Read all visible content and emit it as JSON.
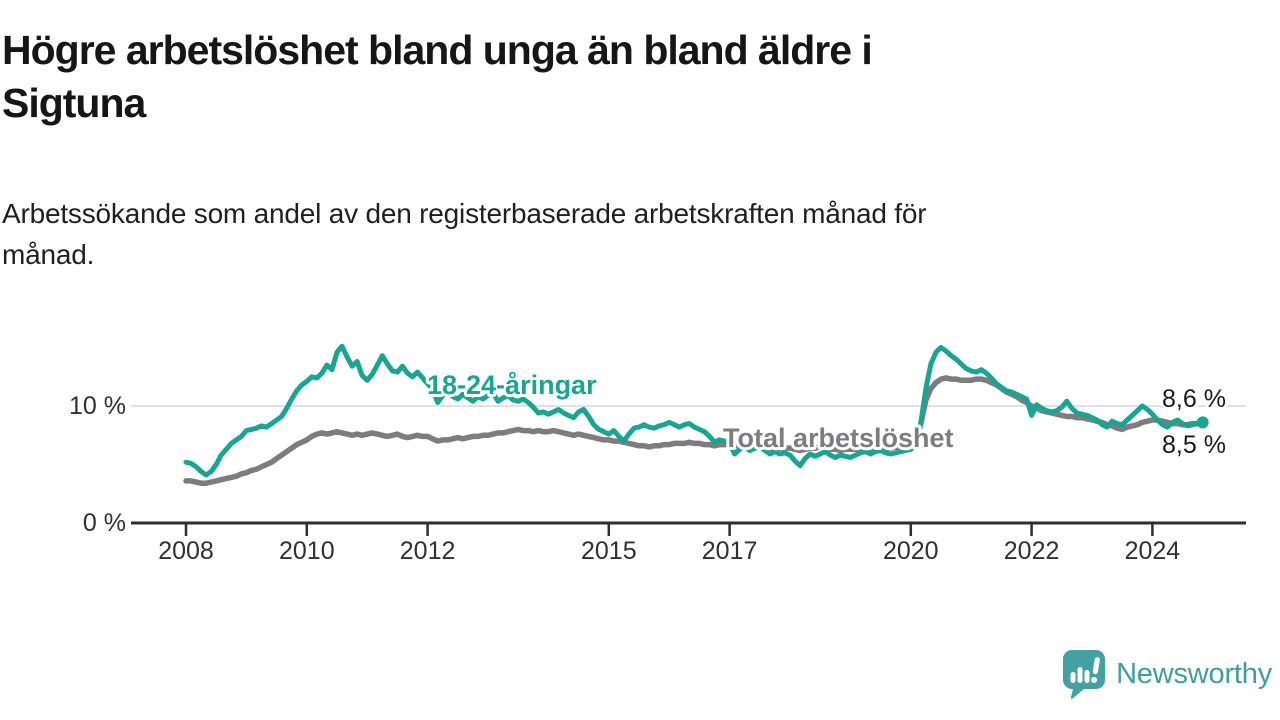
{
  "header": {
    "title_lines": [
      "Högre arbetslöshet bland unga än bland äldre i",
      "Sigtuna"
    ],
    "subtitle_lines": [
      "Arbetssökande som andel av den registerbaserade arbetskraften månad för",
      "månad."
    ]
  },
  "branding": {
    "logo_text": "Newsworthy",
    "logo_icon": "newsworthy-speech-bubble-bar-chart-icon",
    "logo_color": "#3f9da1",
    "logo_icon_color": "#44a0a3"
  },
  "colors": {
    "youth_line": "#1aa493",
    "total_line": "#7d7d81",
    "gridline": "#d9d9d9",
    "axis": "#2e2e2e",
    "axis_text": "#303030",
    "end_label_text": "#1a1a1a"
  },
  "chart_data": {
    "type": "line",
    "title": "Högre arbetslöshet bland unga än bland äldre i Sigtuna",
    "subtitle": "Arbetssökande som andel av den registerbaserade arbetskraften månad för månad.",
    "unit": "%",
    "frequency": "monthly",
    "start": "2008-01",
    "end": "2024-11",
    "grid": "horizontal-10-only",
    "legend_position": "inline-line-labels",
    "ylim": [
      0,
      15.6
    ],
    "y_ticks": [
      {
        "value": 10,
        "label": "10 %",
        "gridline": true
      },
      {
        "value": 0,
        "label": "0 %",
        "gridline": false
      }
    ],
    "x_ticks": [
      {
        "year": 2008,
        "label": "2008"
      },
      {
        "year": 2010,
        "label": "2010"
      },
      {
        "year": 2012,
        "label": "2012"
      },
      {
        "year": 2015,
        "label": "2015"
      },
      {
        "year": 2017,
        "label": "2017"
      },
      {
        "year": 2020,
        "label": "2020"
      },
      {
        "year": 2022,
        "label": "2022"
      },
      {
        "year": 2024,
        "label": "2024"
      }
    ],
    "series": [
      {
        "name": "Total arbetslöshet",
        "color": "#7d7d81",
        "end_label": "8,5 %",
        "values": [
          3.6,
          3.6,
          3.5,
          3.4,
          3.4,
          3.5,
          3.6,
          3.7,
          3.8,
          3.9,
          4.0,
          4.2,
          4.3,
          4.5,
          4.6,
          4.8,
          5.0,
          5.2,
          5.5,
          5.8,
          6.1,
          6.4,
          6.7,
          6.9,
          7.1,
          7.4,
          7.6,
          7.7,
          7.6,
          7.7,
          7.8,
          7.7,
          7.6,
          7.5,
          7.6,
          7.5,
          7.6,
          7.7,
          7.6,
          7.5,
          7.4,
          7.5,
          7.6,
          7.4,
          7.3,
          7.4,
          7.5,
          7.4,
          7.4,
          7.2,
          7.0,
          7.1,
          7.1,
          7.2,
          7.3,
          7.2,
          7.3,
          7.4,
          7.4,
          7.5,
          7.5,
          7.6,
          7.7,
          7.7,
          7.8,
          7.9,
          8.0,
          7.9,
          7.9,
          7.8,
          7.9,
          7.8,
          7.8,
          7.9,
          7.8,
          7.7,
          7.6,
          7.5,
          7.6,
          7.5,
          7.4,
          7.3,
          7.2,
          7.1,
          7.1,
          7.0,
          7.0,
          6.9,
          6.8,
          6.7,
          6.6,
          6.6,
          6.5,
          6.6,
          6.6,
          6.7,
          6.7,
          6.8,
          6.8,
          6.8,
          6.9,
          6.8,
          6.8,
          6.7,
          6.7,
          6.6,
          6.7,
          6.7,
          6.7,
          6.6,
          6.6,
          6.5,
          6.5,
          6.4,
          6.5,
          6.4,
          6.3,
          6.4,
          6.4,
          6.4,
          6.4,
          6.3,
          6.2,
          6.3,
          6.4,
          6.4,
          6.5,
          6.4,
          6.3,
          6.3,
          6.2,
          6.3,
          6.3,
          6.3,
          6.4,
          6.4,
          6.3,
          6.4,
          6.5,
          6.4,
          6.4,
          6.5,
          6.4,
          6.5,
          6.5,
          6.8,
          8.5,
          10.5,
          11.5,
          12.0,
          12.3,
          12.4,
          12.3,
          12.3,
          12.2,
          12.2,
          12.2,
          12.3,
          12.3,
          12.2,
          12.0,
          11.8,
          11.5,
          11.2,
          11.0,
          10.8,
          10.5,
          10.3,
          10.0,
          9.8,
          9.6,
          9.5,
          9.4,
          9.3,
          9.2,
          9.1,
          9.1,
          9.0,
          9.0,
          8.9,
          8.8,
          8.7,
          8.6,
          8.4,
          8.3,
          8.1,
          8.0,
          8.2,
          8.3,
          8.4,
          8.6,
          8.7,
          8.8,
          8.8,
          8.7,
          8.6,
          8.5,
          8.5,
          8.4,
          8.4,
          8.5,
          8.5,
          8.5
        ]
      },
      {
        "name": "18-24-åringar",
        "color": "#1aa493",
        "end_label": "8,6 %",
        "values": [
          5.2,
          5.1,
          4.8,
          4.4,
          4.1,
          4.4,
          5.0,
          5.8,
          6.3,
          6.8,
          7.1,
          7.4,
          7.9,
          8.0,
          8.1,
          8.3,
          8.2,
          8.5,
          8.8,
          9.1,
          9.8,
          10.6,
          11.3,
          11.8,
          12.1,
          12.5,
          12.4,
          12.8,
          13.5,
          13.1,
          14.6,
          15.1,
          14.2,
          13.4,
          13.8,
          12.6,
          12.2,
          12.7,
          13.5,
          14.3,
          13.6,
          13.0,
          12.9,
          13.4,
          12.8,
          12.5,
          12.9,
          12.4,
          11.9,
          11.4,
          10.3,
          10.9,
          11.2,
          10.8,
          10.6,
          11.0,
          10.7,
          10.4,
          10.8,
          10.6,
          10.9,
          11.1,
          10.4,
          10.7,
          10.9,
          10.5,
          10.4,
          10.6,
          10.3,
          9.9,
          9.4,
          9.5,
          9.3,
          9.5,
          9.7,
          9.4,
          9.2,
          9.0,
          9.5,
          9.7,
          9.1,
          8.4,
          8.0,
          7.8,
          7.6,
          7.9,
          7.4,
          7.0,
          7.6,
          8.1,
          8.2,
          8.4,
          8.2,
          8.1,
          8.3,
          8.4,
          8.6,
          8.4,
          8.2,
          8.4,
          8.5,
          8.2,
          8.0,
          7.8,
          7.4,
          6.9,
          7.1,
          7.0,
          6.8,
          5.9,
          6.3,
          6.6,
          6.2,
          6.4,
          6.5,
          6.2,
          5.9,
          6.1,
          5.9,
          6.0,
          5.8,
          5.3,
          4.9,
          5.5,
          5.9,
          5.7,
          5.9,
          6.1,
          5.8,
          5.6,
          5.8,
          5.7,
          5.6,
          5.8,
          6.0,
          6.1,
          5.9,
          6.1,
          6.2,
          6.0,
          5.9,
          6.0,
          6.1,
          6.2,
          6.3,
          6.6,
          8.6,
          11.5,
          13.6,
          14.6,
          15.0,
          14.7,
          14.3,
          14.0,
          13.6,
          13.2,
          13.0,
          12.9,
          13.1,
          12.8,
          12.4,
          11.9,
          11.6,
          11.3,
          11.2,
          11.0,
          10.8,
          10.6,
          9.2,
          10.1,
          9.8,
          9.6,
          9.5,
          9.6,
          9.9,
          10.4,
          9.8,
          9.4,
          9.3,
          9.2,
          9.0,
          8.8,
          8.4,
          8.2,
          8.7,
          8.5,
          8.4,
          8.8,
          9.2,
          9.6,
          10.0,
          9.7,
          9.3,
          8.8,
          8.4,
          8.2,
          8.6,
          8.8,
          8.5,
          8.3,
          8.4,
          8.5,
          8.6
        ]
      }
    ],
    "line_labels": [
      {
        "series": "18-24-åringar",
        "text": "18-24-åringar",
        "color": "#1aa493"
      },
      {
        "series": "Total arbetslöshet",
        "text": "Total arbetslöshet",
        "color": "#7d7d81"
      }
    ]
  }
}
